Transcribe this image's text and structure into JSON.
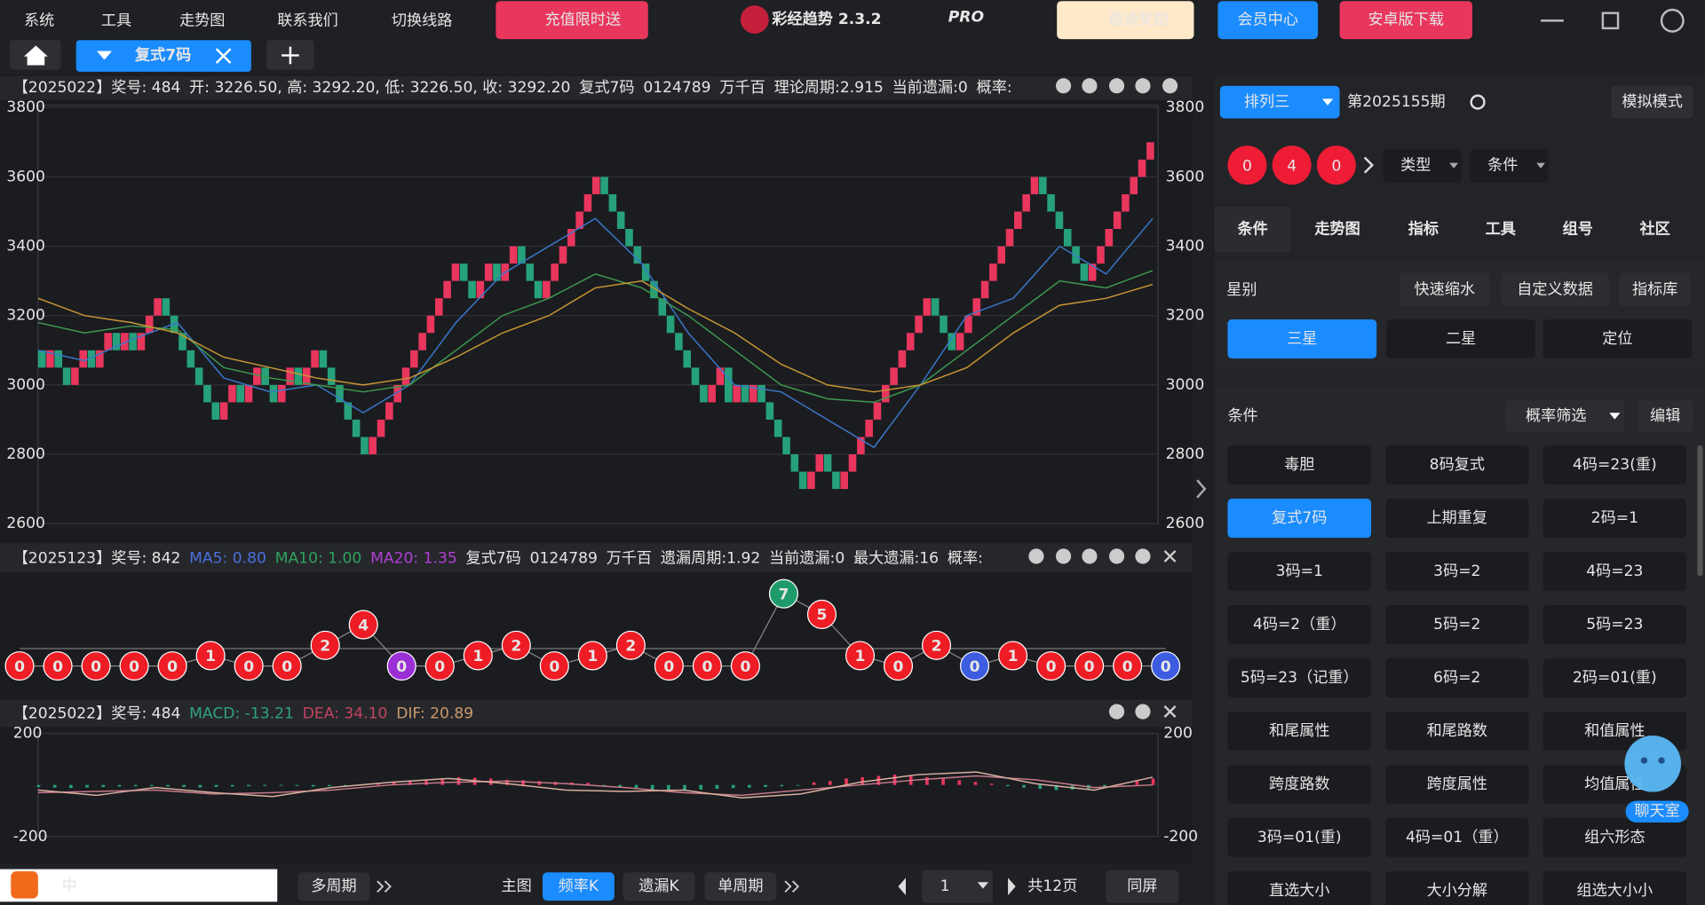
{
  "menu": {
    "items": [
      "系统",
      "工具",
      "走势图",
      "联系我们",
      "切换线路"
    ],
    "promo": "充值限时送",
    "app_title": "彩经趋势 2.3.2",
    "badge": "PRO",
    "invite": "邀请奖励",
    "member": "会员中心",
    "android": "安卓版下载"
  },
  "tabs": {
    "active": "复式7码"
  },
  "main_chart": {
    "type": "renko",
    "header": [
      "【2025022】奖号: 484",
      "开: 3226.50, 高: 3292.20, 低: 3226.50, 收: 3292.20",
      "复式7码",
      "0124789",
      "万千百",
      "理论周期:2.915",
      "当前遗漏:0",
      "概率:"
    ],
    "ylim": [
      2600,
      3800
    ],
    "yticks": [
      2600,
      2800,
      3000,
      3200,
      3400,
      3600,
      3800
    ],
    "up_color": "#e8365d",
    "down_color": "#26a17b",
    "closes": [
      3100,
      3050,
      3100,
      3050,
      3000,
      3050,
      3100,
      3050,
      3100,
      3150,
      3100,
      3150,
      3100,
      3150,
      3200,
      3250,
      3200,
      3150,
      3100,
      3050,
      3000,
      2950,
      2900,
      2950,
      3000,
      2950,
      3000,
      3050,
      3000,
      2950,
      3000,
      3050,
      3000,
      3050,
      3100,
      3050,
      3000,
      2950,
      2900,
      2850,
      2800,
      2850,
      2900,
      2950,
      3000,
      3050,
      3100,
      3150,
      3200,
      3250,
      3300,
      3350,
      3300,
      3250,
      3300,
      3350,
      3300,
      3350,
      3400,
      3350,
      3300,
      3250,
      3300,
      3350,
      3400,
      3450,
      3500,
      3550,
      3600,
      3550,
      3500,
      3450,
      3400,
      3350,
      3300,
      3250,
      3200,
      3150,
      3100,
      3050,
      3000,
      2950,
      3000,
      3050,
      2950,
      3000,
      2950,
      3000,
      2950,
      2900,
      2850,
      2800,
      2750,
      2700,
      2750,
      2800,
      2750,
      2700,
      2750,
      2800,
      2850,
      2900,
      2950,
      3000,
      3050,
      3100,
      3150,
      3200,
      3250,
      3200,
      3150,
      3100,
      3150,
      3200,
      3250,
      3300,
      3350,
      3400,
      3450,
      3500,
      3550,
      3600,
      3550,
      3500,
      3450,
      3400,
      3350,
      3300,
      3350,
      3400,
      3450,
      3500,
      3550,
      3600,
      3650,
      3700
    ],
    "ma": [
      {
        "color": "#3a78c9",
        "values": [
          3100,
          3070,
          3130,
          3180,
          3020,
          2980,
          3000,
          2920,
          3000,
          3180,
          3320,
          3400,
          3480,
          3350,
          3150,
          3000,
          2980,
          2900,
          2820,
          3000,
          3200,
          3250,
          3400,
          3320,
          3480
        ]
      },
      {
        "color": "#3d9a4f",
        "values": [
          3180,
          3150,
          3170,
          3160,
          3050,
          3020,
          3000,
          2980,
          3000,
          3100,
          3200,
          3250,
          3320,
          3280,
          3200,
          3100,
          3000,
          2960,
          2950,
          3000,
          3100,
          3200,
          3300,
          3280,
          3330
        ]
      },
      {
        "color": "#c99634",
        "values": [
          3250,
          3200,
          3180,
          3150,
          3080,
          3050,
          3020,
          3000,
          3020,
          3080,
          3150,
          3200,
          3280,
          3300,
          3220,
          3150,
          3060,
          3000,
          2980,
          3000,
          3050,
          3150,
          3230,
          3250,
          3290
        ]
      }
    ]
  },
  "omission_chart": {
    "header": [
      "【2025123】奖号: 842",
      "MA5: 0.80",
      "MA10: 1.00",
      "MA20: 1.35",
      "复式7码",
      "0124789",
      "万千百",
      "遗漏周期:1.92",
      "当前遗漏:0",
      "最大遗漏:16",
      "概率:"
    ],
    "values": [
      0,
      0,
      0,
      0,
      0,
      1,
      0,
      0,
      2,
      4,
      0,
      0,
      1,
      2,
      0,
      1,
      2,
      0,
      0,
      0,
      7,
      5,
      1,
      0,
      2,
      0,
      1,
      0,
      0,
      0,
      0
    ],
    "colors": [
      "#ee1c25",
      "#ee1c25",
      "#ee1c25",
      "#ee1c25",
      "#ee1c25",
      "#ee1c25",
      "#ee1c25",
      "#ee1c25",
      "#ee1c25",
      "#ee1c25",
      "#9b2fd6",
      "#ee1c25",
      "#ee1c25",
      "#ee1c25",
      "#ee1c25",
      "#ee1c25",
      "#ee1c25",
      "#ee1c25",
      "#ee1c25",
      "#ee1c25",
      "#1f9a6a",
      "#ee1c25",
      "#ee1c25",
      "#ee1c25",
      "#ee1c25",
      "#3d5ce0",
      "#ee1c25",
      "#ee1c25",
      "#ee1c25",
      "#ee1c25",
      "#3d5ce0"
    ]
  },
  "macd_chart": {
    "header": [
      "【2025022】奖号: 484",
      "MACD: -13.21",
      "DEA: 34.10",
      "DIF: 20.89"
    ],
    "ylim": [
      -200,
      200
    ],
    "yticks": [
      -200,
      200
    ],
    "histogram": [
      -8,
      -10,
      -12,
      -10,
      -8,
      -6,
      -5,
      -4,
      -6,
      -8,
      -10,
      -8,
      -6,
      -5,
      -4,
      -3,
      -4,
      -6,
      -5,
      -4,
      -3,
      5,
      10,
      15,
      20,
      25,
      30,
      28,
      25,
      20,
      18,
      15,
      12,
      10,
      8,
      -5,
      -10,
      -15,
      -20,
      -25,
      -22,
      -18,
      -15,
      -12,
      -10,
      -8,
      -5,
      -3,
      10,
      15,
      25,
      30,
      35,
      40,
      38,
      30,
      25,
      18,
      12,
      5,
      -5,
      -10,
      -15,
      -20,
      -18,
      -15,
      -10,
      5,
      15,
      25
    ],
    "dea": [
      -30,
      -25,
      -20,
      -35,
      -30,
      -20,
      0,
      10,
      15,
      5,
      -10,
      -30,
      -40,
      -20,
      0,
      20,
      35,
      20,
      -10,
      0
    ],
    "dif": [
      -20,
      -40,
      -10,
      -30,
      -45,
      -10,
      10,
      25,
      5,
      -20,
      -25,
      -20,
      -50,
      -35,
      10,
      40,
      50,
      5,
      -20,
      30
    ]
  },
  "bottom": {
    "ime": "中",
    "multi": "多周期",
    "main": "主图",
    "tabs": [
      "频率K",
      "遗漏K",
      "单周期"
    ],
    "page": "1",
    "pages": "共12页",
    "same": "同屏"
  },
  "panel": {
    "lottery": "排列三",
    "issue": "第2025155期",
    "mode": "模拟模式",
    "balls": [
      "0",
      "4",
      "0"
    ],
    "type": "类型",
    "cond": "条件",
    "tabs": [
      "条件",
      "走势图",
      "指标",
      "工具",
      "组号",
      "社区"
    ],
    "star_title": "星别",
    "links": [
      "快速缩水",
      "自定义数据",
      "指标库"
    ],
    "stars": [
      "三星",
      "二星",
      "定位"
    ],
    "cond_title": "条件",
    "filter": "概率筛选",
    "edit": "编辑",
    "buttons": [
      "毒胆",
      "8码复式",
      "4码=23(重)",
      "复式7码",
      "上期重复",
      "2码=1",
      "3码=1",
      "3码=2",
      "4码=23",
      "4码=2（重）",
      "5码=2",
      "5码=23",
      "5码=23（记重）",
      "6码=2",
      "2码=01(重)",
      "和尾属性",
      "和尾路数",
      "和值属性",
      "跨度路数",
      "跨度属性",
      "均值属性",
      "3码=01(重)",
      "4码=01（重）",
      "组六形态",
      "直选大小",
      "大小分解",
      "组选大小小"
    ],
    "chat": "聊天室"
  }
}
